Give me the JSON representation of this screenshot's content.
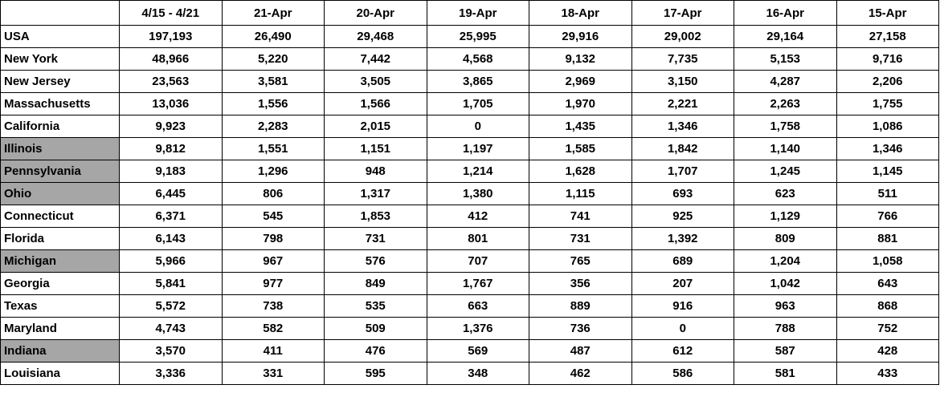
{
  "table": {
    "columns": [
      "4/15 - 4/21",
      "21-Apr",
      "20-Apr",
      "19-Apr",
      "18-Apr",
      "17-Apr",
      "16-Apr",
      "15-Apr"
    ],
    "rows": [
      {
        "label": "USA",
        "highlight": false,
        "cells": [
          "197,193",
          "26,490",
          "29,468",
          "25,995",
          "29,916",
          "29,002",
          "29,164",
          "27,158"
        ]
      },
      {
        "label": "New York",
        "highlight": false,
        "cells": [
          "48,966",
          "5,220",
          "7,442",
          "4,568",
          "9,132",
          "7,735",
          "5,153",
          "9,716"
        ]
      },
      {
        "label": "New Jersey",
        "highlight": false,
        "cells": [
          "23,563",
          "3,581",
          "3,505",
          "3,865",
          "2,969",
          "3,150",
          "4,287",
          "2,206"
        ]
      },
      {
        "label": "Massachusetts",
        "highlight": false,
        "cells": [
          "13,036",
          "1,556",
          "1,566",
          "1,705",
          "1,970",
          "2,221",
          "2,263",
          "1,755"
        ]
      },
      {
        "label": "California",
        "highlight": false,
        "cells": [
          "9,923",
          "2,283",
          "2,015",
          "0",
          "1,435",
          "1,346",
          "1,758",
          "1,086"
        ]
      },
      {
        "label": "Illinois",
        "highlight": true,
        "cells": [
          "9,812",
          "1,551",
          "1,151",
          "1,197",
          "1,585",
          "1,842",
          "1,140",
          "1,346"
        ]
      },
      {
        "label": "Pennsylvania",
        "highlight": true,
        "cells": [
          "9,183",
          "1,296",
          "948",
          "1,214",
          "1,628",
          "1,707",
          "1,245",
          "1,145"
        ]
      },
      {
        "label": "Ohio",
        "highlight": true,
        "cells": [
          "6,445",
          "806",
          "1,317",
          "1,380",
          "1,115",
          "693",
          "623",
          "511"
        ]
      },
      {
        "label": "Connecticut",
        "highlight": false,
        "cells": [
          "6,371",
          "545",
          "1,853",
          "412",
          "741",
          "925",
          "1,129",
          "766"
        ]
      },
      {
        "label": "Florida",
        "highlight": false,
        "cells": [
          "6,143",
          "798",
          "731",
          "801",
          "731",
          "1,392",
          "809",
          "881"
        ]
      },
      {
        "label": "Michigan",
        "highlight": true,
        "cells": [
          "5,966",
          "967",
          "576",
          "707",
          "765",
          "689",
          "1,204",
          "1,058"
        ]
      },
      {
        "label": "Georgia",
        "highlight": false,
        "cells": [
          "5,841",
          "977",
          "849",
          "1,767",
          "356",
          "207",
          "1,042",
          "643"
        ]
      },
      {
        "label": "Texas",
        "highlight": false,
        "cells": [
          "5,572",
          "738",
          "535",
          "663",
          "889",
          "916",
          "963",
          "868"
        ]
      },
      {
        "label": "Maryland",
        "highlight": false,
        "cells": [
          "4,743",
          "582",
          "509",
          "1,376",
          "736",
          "0",
          "788",
          "752"
        ]
      },
      {
        "label": "Indiana",
        "highlight": true,
        "cells": [
          "3,570",
          "411",
          "476",
          "569",
          "487",
          "612",
          "587",
          "428"
        ]
      },
      {
        "label": "Louisiana",
        "highlight": false,
        "cells": [
          "3,336",
          "331",
          "595",
          "348",
          "462",
          "586",
          "581",
          "433"
        ]
      }
    ]
  }
}
